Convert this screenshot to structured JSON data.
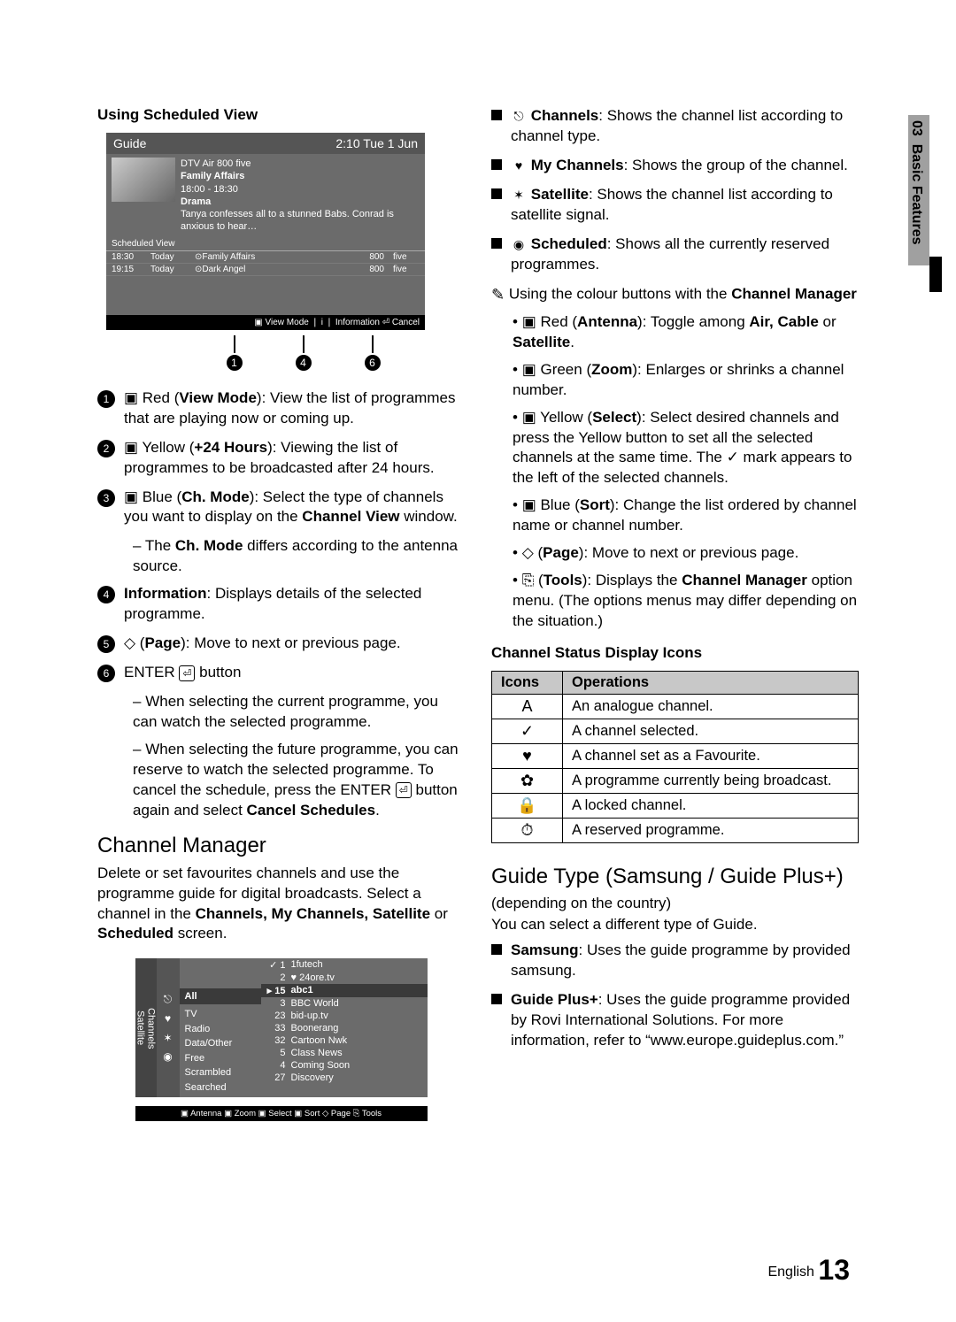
{
  "sideTab": {
    "chapter": "03",
    "title": "Basic Features"
  },
  "pageFooter": {
    "lang": "English",
    "num": "13"
  },
  "left": {
    "heading": "Using Scheduled View",
    "guide": {
      "title": "Guide",
      "clock": "2:10 Tue 1 Jun",
      "meta_channel": "DTV Air 800 five",
      "meta_prog": "Family Affairs",
      "meta_time": "18:00 - 18:30",
      "meta_genre": "Drama",
      "meta_desc": "Tanya confesses all to a stunned Babs. Conrad is anxious to hear…",
      "sched_label": "Scheduled View",
      "rows": [
        {
          "t": "18:30",
          "d": "Today",
          "prog": "⊙Family Affairs",
          "num": "800",
          "ch": "five"
        },
        {
          "t": "19:15",
          "d": "Today",
          "prog": "⊙Dark Angel",
          "num": "800",
          "ch": "five"
        }
      ],
      "footer": "▣ View Mode ❘ i ❘ Information   ⏎ Cancel"
    },
    "callouts": [
      "1",
      "4",
      "6"
    ],
    "items": [
      {
        "n": "1",
        "html": "▣ Red (<b>View Mode</b>): View the list of programmes that are playing now or coming up."
      },
      {
        "n": "2",
        "html": "▣ Yellow (<b>+24 Hours</b>): Viewing the list of programmes to be broadcasted after 24 hours."
      },
      {
        "n": "3",
        "html": "▣ Blue (<b>Ch. Mode</b>): Select the type of channels you want to display on the <b>Channel View</b> window."
      },
      {
        "sub": true,
        "html": "The <b>Ch. Mode</b> differs according to the antenna source."
      },
      {
        "n": "4",
        "html": "<b>Information</b>: Displays details of the selected programme."
      },
      {
        "n": "5",
        "html": "◇ (<b>Page</b>): Move to next or previous page."
      },
      {
        "n": "6",
        "html": "ENTER <span class='enter-box'>⏎</span> button"
      },
      {
        "sub": true,
        "html": "When selecting the current programme, you can watch the selected programme."
      },
      {
        "sub": true,
        "html": "When selecting the future programme, you can reserve to watch the selected programme. To cancel the schedule, press the ENTER <span class='enter-box'>⏎</span> button again and select <b>Cancel Schedules</b>."
      }
    ],
    "cmHeading": "Channel Manager",
    "cmDesc": "Delete or set favourites channels and use the programme guide for digital broadcasts. Select a channel in the <b>Channels, My Channels, Satellite</b> or <b>Scheduled</b> screen.",
    "cm": {
      "sideTop": "Channels",
      "sideBot": "Satellite",
      "catAll": "All",
      "cats": [
        "TV",
        "Radio",
        "Data/Other",
        "Free",
        "Scrambled",
        "Searched"
      ],
      "top": [
        {
          "num": "✓ 1",
          "name": "1futech"
        },
        {
          "num": "2",
          "name": "♥ 24ore.tv"
        }
      ],
      "hdr": {
        "num": "▸  15",
        "name": "abc1"
      },
      "rows": [
        {
          "num": "3",
          "name": "BBC World"
        },
        {
          "num": "23",
          "name": "bid-up.tv"
        },
        {
          "num": "33",
          "name": "Boonerang"
        },
        {
          "num": "32",
          "name": "Cartoon Nwk"
        },
        {
          "num": "5",
          "name": "Class News"
        },
        {
          "num": "4",
          "name": "Coming Soon"
        },
        {
          "num": "27",
          "name": "Discovery"
        }
      ],
      "footer": "▣ Antenna ▣ Zoom ▣ Select ▣ Sort  ◇ Page  ⎘ Tools"
    }
  },
  "right": {
    "bullets": [
      {
        "icon": "⎋",
        "html": "<b>Channels</b>: Shows the channel list according to channel type."
      },
      {
        "icon": "♥",
        "html": "<b>My Channels</b>: Shows the group of the channel."
      },
      {
        "icon": "✶",
        "html": "<b>Satellite</b>: Shows the channel list according to satellite signal."
      },
      {
        "icon": "◉",
        "html": "<b>Scheduled</b>: Shows all the currently reserved programmes."
      }
    ],
    "noteLine": "Using the colour buttons with the <b>Channel Manager</b>",
    "colours": [
      "▣ Red (<b>Antenna</b>): Toggle among <b>Air, Cable</b> or <b>Satellite</b>.",
      "▣ Green (<b>Zoom</b>): Enlarges or shrinks a channel number.",
      "▣ Yellow (<b>Select</b>): Select desired channels and press the Yellow button to set all the selected channels at the same time. The ✓ mark appears to the left of the selected channels.",
      "▣ Blue (<b>Sort</b>): Change the list ordered by channel name or channel number.",
      "◇ (<b>Page</b>): Move to next or previous page.",
      "⎘ (<b>Tools</b>): Displays the <b>Channel Manager</b> option menu. (The options menus may differ depending on the situation.)"
    ],
    "statusHeading": "Channel Status Display Icons",
    "statusTable": {
      "th1": "Icons",
      "th2": "Operations",
      "rows": [
        {
          "i": "A",
          "t": "An analogue channel."
        },
        {
          "i": "✓",
          "t": "A channel selected."
        },
        {
          "i": "♥",
          "t": "A channel set as a Favourite."
        },
        {
          "i": "✿",
          "t": "A programme currently being broadcast."
        },
        {
          "i": "🔒",
          "t": "A locked channel."
        },
        {
          "i": "⏱",
          "t": "A reserved programme."
        }
      ]
    },
    "guideTypeHeading": "Guide Type (Samsung / Guide Plus+)",
    "gt_note": "(depending on the country)",
    "gt_desc": "You can select a different type of Guide.",
    "gt_bullets": [
      "<b>Samsung</b>: Uses the guide programme by provided samsung.",
      "<b>Guide Plus+</b>: Uses the guide programme provided by Rovi International Solutions. For more information, refer to “www.europe.guideplus.com.”"
    ]
  }
}
